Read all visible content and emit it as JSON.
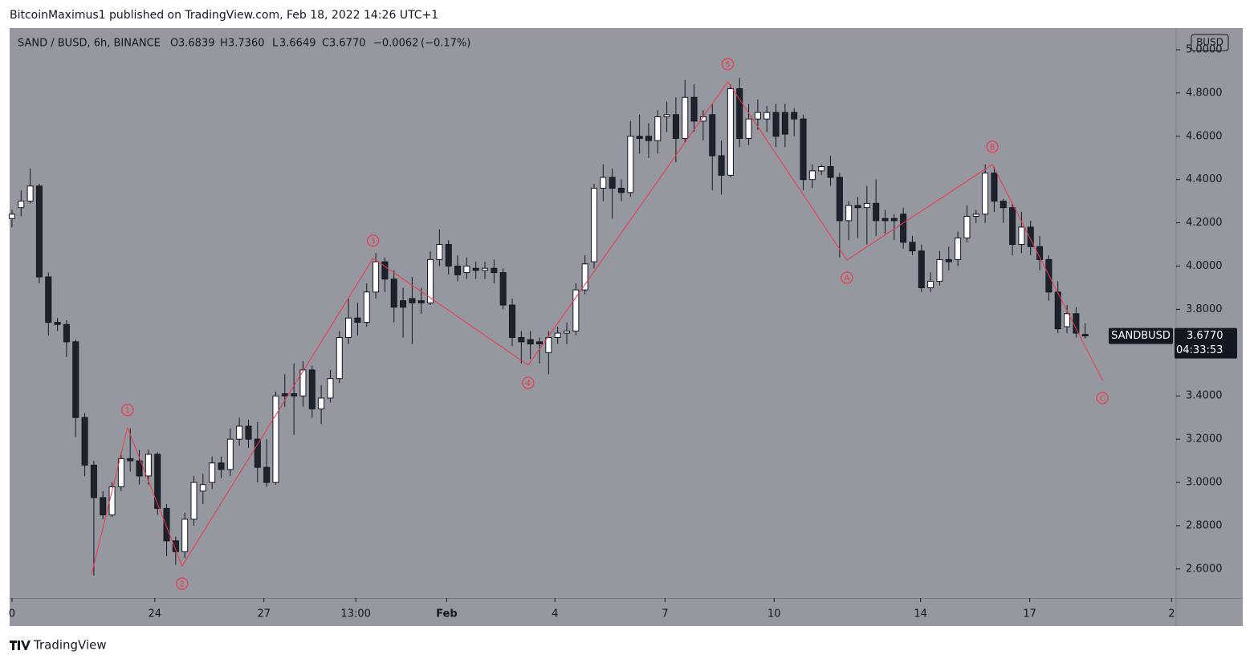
{
  "header": {
    "byline": "BitcoinMaximus1 published on TradingView.com, Feb 18, 2022 14:26 UTC+1"
  },
  "footer": {
    "brand": "TradingView"
  },
  "chart_data": {
    "type": "candlestick",
    "symbol": "SAND / BUSD, 6h, BINANCE",
    "currency": "BUSD",
    "legend": [
      {
        "key": "O",
        "value": {
          "value": 3.6839,
          "label": "3.6839"
        }
      },
      {
        "key": "H",
        "value": {
          "value": 3.736,
          "label": "3.7360"
        }
      },
      {
        "key": "L",
        "value": {
          "value": 3.6649,
          "label": "3.6649"
        }
      },
      {
        "key": "C",
        "value": {
          "value": 3.677,
          "label": "3.6770"
        }
      }
    ],
    "change": {
      "value": -0.0062,
      "label": "−0.0062"
    },
    "change_pct": {
      "value": -0.17,
      "label": "(−0.17%)"
    },
    "ticker": "SANDBUSD",
    "last_price": {
      "value": 3.677,
      "label": "3.6770"
    },
    "countdown": "04:33:53",
    "open": [
      4.22,
      4.27,
      4.3,
      4.37,
      3.95,
      3.74,
      3.73,
      3.65,
      3.3,
      3.08,
      2.93,
      2.85,
      2.98,
      3.11,
      3.1,
      3.03,
      3.13,
      2.88,
      2.73,
      2.68,
      2.83,
      2.96,
      3.0,
      3.09,
      3.06,
      3.2,
      3.26,
      3.2,
      3.07,
      3.0,
      3.41,
      3.41,
      3.4,
      3.52,
      3.34,
      3.39,
      3.48,
      3.67,
      3.76,
      3.74,
      3.88,
      4.02,
      3.94,
      3.84,
      3.85,
      3.84,
      3.83,
      4.03,
      4.1,
      4.0,
      3.97,
      3.99,
      3.98,
      3.99,
      3.97,
      3.82,
      3.67,
      3.66,
      3.65,
      3.6,
      3.67,
      3.69,
      3.7,
      3.89,
      4.02,
      4.36,
      4.41,
      4.36,
      4.34,
      4.6,
      4.6,
      4.58,
      4.69,
      4.7,
      4.59,
      4.78,
      4.67,
      4.7,
      4.51,
      4.42,
      4.82,
      4.59,
      4.68,
      4.68,
      4.71,
      4.71,
      4.71,
      4.68,
      4.4,
      4.44,
      4.46,
      4.41,
      4.21,
      4.28,
      4.27,
      4.29,
      4.22,
      4.22,
      4.24,
      4.11,
      4.07,
      3.9,
      3.93,
      4.03,
      4.03,
      4.13,
      4.23,
      4.24,
      4.43,
      4.3,
      4.27,
      4.1,
      4.18,
      4.09,
      4.03,
      3.88,
      3.72,
      3.78,
      3.6839
    ],
    "high": [
      4.26,
      4.35,
      4.45,
      4.38,
      3.97,
      3.76,
      3.75,
      3.66,
      3.32,
      3.1,
      2.96,
      3.0,
      3.14,
      3.25,
      3.15,
      3.15,
      3.14,
      2.9,
      2.75,
      2.86,
      3.03,
      3.04,
      3.12,
      3.12,
      3.25,
      3.3,
      3.29,
      3.28,
      3.2,
      3.42,
      3.5,
      3.55,
      3.56,
      3.54,
      3.45,
      3.52,
      3.7,
      3.85,
      3.83,
      3.92,
      4.06,
      4.04,
      3.98,
      3.9,
      3.95,
      3.9,
      4.07,
      4.17,
      4.12,
      4.05,
      4.04,
      4.02,
      4.02,
      4.03,
      3.99,
      3.85,
      3.7,
      3.7,
      3.67,
      3.7,
      3.72,
      3.74,
      3.92,
      4.05,
      4.38,
      4.47,
      4.45,
      4.4,
      4.67,
      4.7,
      4.66,
      4.72,
      4.76,
      4.78,
      4.86,
      4.84,
      4.72,
      4.75,
      4.58,
      4.84,
      4.87,
      4.75,
      4.77,
      4.74,
      4.75,
      4.75,
      4.73,
      4.7,
      4.47,
      4.47,
      4.51,
      4.43,
      4.3,
      4.32,
      4.37,
      4.4,
      4.26,
      4.24,
      4.27,
      4.14,
      4.1,
      3.97,
      4.07,
      4.09,
      4.16,
      4.28,
      4.26,
      4.47,
      4.46,
      4.31,
      4.29,
      4.25,
      4.21,
      4.14,
      4.05,
      3.93,
      3.82,
      3.81,
      3.736
    ],
    "low": [
      4.18,
      4.23,
      4.29,
      3.92,
      3.68,
      3.7,
      3.58,
      3.21,
      3.03,
      2.57,
      2.83,
      2.84,
      2.96,
      3.05,
      2.99,
      2.99,
      2.85,
      2.66,
      2.62,
      2.65,
      2.8,
      2.9,
      2.97,
      3.02,
      3.03,
      3.17,
      3.16,
      3.0,
      2.98,
      2.99,
      3.35,
      3.22,
      3.35,
      3.3,
      3.27,
      3.37,
      3.46,
      3.64,
      3.68,
      3.72,
      3.85,
      3.88,
      3.74,
      3.67,
      3.64,
      3.78,
      3.82,
      4.0,
      3.96,
      3.93,
      3.94,
      3.94,
      3.94,
      3.92,
      3.8,
      3.63,
      3.55,
      3.57,
      3.55,
      3.5,
      3.64,
      3.64,
      3.68,
      3.87,
      3.99,
      4.3,
      4.22,
      4.3,
      4.32,
      4.52,
      4.5,
      4.52,
      4.62,
      4.48,
      4.57,
      4.62,
      4.58,
      4.35,
      4.33,
      4.41,
      4.55,
      4.56,
      4.63,
      4.62,
      4.55,
      4.55,
      4.6,
      4.35,
      4.36,
      4.42,
      4.37,
      4.04,
      4.12,
      4.13,
      4.1,
      4.14,
      4.15,
      4.12,
      4.08,
      4.05,
      3.88,
      3.88,
      3.91,
      3.98,
      4.0,
      4.11,
      4.2,
      4.2,
      4.25,
      4.2,
      4.05,
      4.06,
      4.05,
      3.98,
      3.84,
      3.69,
      3.69,
      3.67,
      3.6649
    ],
    "close": [
      4.24,
      4.3,
      4.37,
      3.95,
      3.74,
      3.73,
      3.65,
      3.3,
      3.08,
      2.93,
      2.85,
      2.98,
      3.11,
      3.1,
      3.03,
      3.13,
      2.88,
      2.73,
      2.68,
      2.83,
      3.0,
      2.99,
      3.09,
      3.06,
      3.2,
      3.26,
      3.2,
      3.07,
      3.0,
      3.4,
      3.4,
      3.4,
      3.52,
      3.34,
      3.39,
      3.48,
      3.67,
      3.76,
      3.74,
      3.88,
      4.02,
      3.94,
      3.81,
      3.81,
      3.83,
      3.83,
      4.03,
      4.1,
      4.0,
      3.96,
      4.0,
      3.98,
      3.99,
      3.97,
      3.82,
      3.67,
      3.65,
      3.64,
      3.64,
      3.67,
      3.69,
      3.7,
      3.89,
      4.01,
      4.36,
      4.41,
      4.36,
      4.34,
      4.6,
      4.59,
      4.58,
      4.69,
      4.7,
      4.59,
      4.78,
      4.67,
      4.69,
      4.51,
      4.42,
      4.82,
      4.59,
      4.68,
      4.71,
      4.71,
      4.6,
      4.61,
      4.68,
      4.4,
      4.44,
      4.46,
      4.41,
      4.21,
      4.28,
      4.27,
      4.29,
      4.21,
      4.21,
      4.21,
      4.11,
      4.07,
      3.9,
      3.93,
      4.03,
      4.02,
      4.13,
      4.23,
      4.24,
      4.43,
      4.3,
      4.27,
      4.1,
      4.18,
      4.09,
      4.03,
      3.88,
      3.71,
      3.78,
      3.69,
      3.677
    ],
    "up_color": "#ffffff",
    "down_color": "#1e222d",
    "wave": {
      "color": "#f23645",
      "x": [
        8.74,
        12.7,
        18.7,
        39.7,
        56.75,
        78.7,
        91.8,
        107.8,
        119.9
      ],
      "y": [
        2.574,
        3.253,
        2.614,
        4.036,
        3.542,
        4.852,
        4.028,
        4.47,
        3.472
      ],
      "labels": [
        null,
        "1",
        "2",
        "3",
        "4",
        "5",
        "A",
        "B",
        "C"
      ],
      "label_position": [
        null,
        "above",
        "below",
        "above",
        "below",
        "above",
        "below",
        "above",
        "below"
      ]
    },
    "xlim": [
      -0.26,
      128
    ],
    "xticks": [
      {
        "value": 0,
        "label": "0"
      },
      {
        "value": 15.7,
        "label": "24"
      },
      {
        "value": 27.7,
        "label": "27"
      },
      {
        "value": 37.8,
        "label": "13:00"
      },
      {
        "value": 47.8,
        "label": "Feb"
      },
      {
        "value": 59.7,
        "label": "4"
      },
      {
        "value": 71.8,
        "label": "7"
      },
      {
        "value": 83.8,
        "label": "10"
      },
      {
        "value": 99.9,
        "label": "14"
      },
      {
        "value": 111.9,
        "label": "17"
      },
      {
        "value": 127.5,
        "label": "2"
      }
    ],
    "ylim": [
      2.466,
      5.1
    ],
    "yticks": [
      {
        "value": 2.6,
        "label": "2.6000"
      },
      {
        "value": 2.8,
        "label": "2.8000"
      },
      {
        "value": 3.0,
        "label": "3.0000"
      },
      {
        "value": 3.2,
        "label": "3.2000"
      },
      {
        "value": 3.4,
        "label": "3.4000"
      },
      {
        "value": 3.6,
        "label": "3.6000"
      },
      {
        "value": 3.8,
        "label": "3.8000"
      },
      {
        "value": 4.0,
        "label": "4.0000"
      },
      {
        "value": 4.2,
        "label": "4.2000"
      },
      {
        "value": 4.4,
        "label": "4.4000"
      },
      {
        "value": 4.6,
        "label": "4.6000"
      },
      {
        "value": 4.8,
        "label": "4.8000"
      },
      {
        "value": 5.0,
        "label": "5.0000"
      }
    ]
  }
}
